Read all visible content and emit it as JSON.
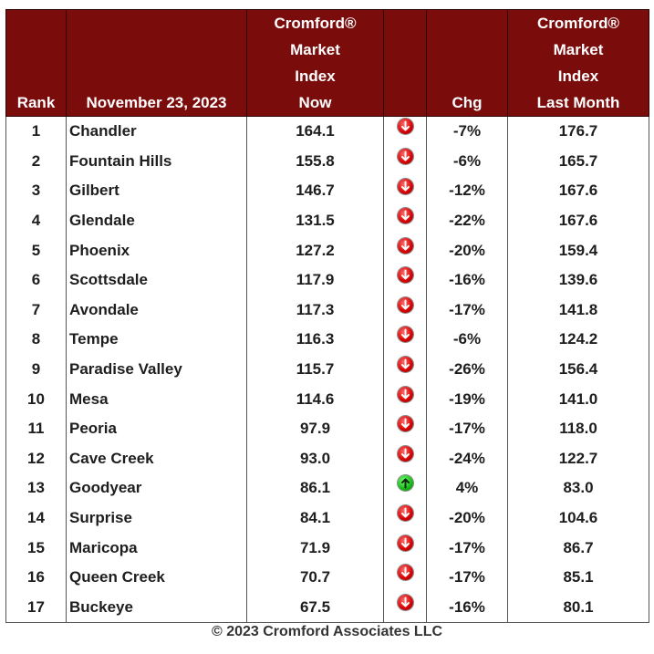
{
  "header": {
    "rank": "Rank",
    "date": "November 23, 2023",
    "now_lines": [
      "Cromford®",
      "Market",
      "Index",
      "Now"
    ],
    "chg": "Chg",
    "last_lines": [
      "Cromford®",
      "Market",
      "Index",
      "Last Month"
    ]
  },
  "rows": [
    {
      "rank": "1",
      "city": "Chandler",
      "now": "164.1",
      "dir": "down",
      "chg": "-7%",
      "last": "176.7"
    },
    {
      "rank": "2",
      "city": "Fountain Hills",
      "now": "155.8",
      "dir": "down",
      "chg": "-6%",
      "last": "165.7"
    },
    {
      "rank": "3",
      "city": "Gilbert",
      "now": "146.7",
      "dir": "down",
      "chg": "-12%",
      "last": "167.6"
    },
    {
      "rank": "4",
      "city": "Glendale",
      "now": "131.5",
      "dir": "down",
      "chg": "-22%",
      "last": "167.6"
    },
    {
      "rank": "5",
      "city": "Phoenix",
      "now": "127.2",
      "dir": "down",
      "chg": "-20%",
      "last": "159.4"
    },
    {
      "rank": "6",
      "city": "Scottsdale",
      "now": "117.9",
      "dir": "down",
      "chg": "-16%",
      "last": "139.6"
    },
    {
      "rank": "7",
      "city": "Avondale",
      "now": "117.3",
      "dir": "down",
      "chg": "-17%",
      "last": "141.8"
    },
    {
      "rank": "8",
      "city": "Tempe",
      "now": "116.3",
      "dir": "down",
      "chg": "-6%",
      "last": "124.2"
    },
    {
      "rank": "9",
      "city": "Paradise Valley",
      "now": "115.7",
      "dir": "down",
      "chg": "-26%",
      "last": "156.4"
    },
    {
      "rank": "10",
      "city": "Mesa",
      "now": "114.6",
      "dir": "down",
      "chg": "-19%",
      "last": "141.0"
    },
    {
      "rank": "11",
      "city": "Peoria",
      "now": "97.9",
      "dir": "down",
      "chg": "-17%",
      "last": "118.0"
    },
    {
      "rank": "12",
      "city": "Cave Creek",
      "now": "93.0",
      "dir": "down",
      "chg": "-24%",
      "last": "122.7"
    },
    {
      "rank": "13",
      "city": "Goodyear",
      "now": "86.1",
      "dir": "up",
      "chg": "4%",
      "last": "83.0"
    },
    {
      "rank": "14",
      "city": "Surprise",
      "now": "84.1",
      "dir": "down",
      "chg": "-20%",
      "last": "104.6"
    },
    {
      "rank": "15",
      "city": "Maricopa",
      "now": "71.9",
      "dir": "down",
      "chg": "-17%",
      "last": "86.7"
    },
    {
      "rank": "16",
      "city": "Queen Creek",
      "now": "70.7",
      "dir": "down",
      "chg": "-17%",
      "last": "85.1"
    },
    {
      "rank": "17",
      "city": "Buckeye",
      "now": "67.5",
      "dir": "down",
      "chg": "-16%",
      "last": "80.1"
    }
  ],
  "footer": "© 2023 Cromford Associates LLC",
  "colors": {
    "header_bg": "#7b0c0c",
    "down_arrow": "#d40000",
    "up_arrow": "#14b814"
  }
}
